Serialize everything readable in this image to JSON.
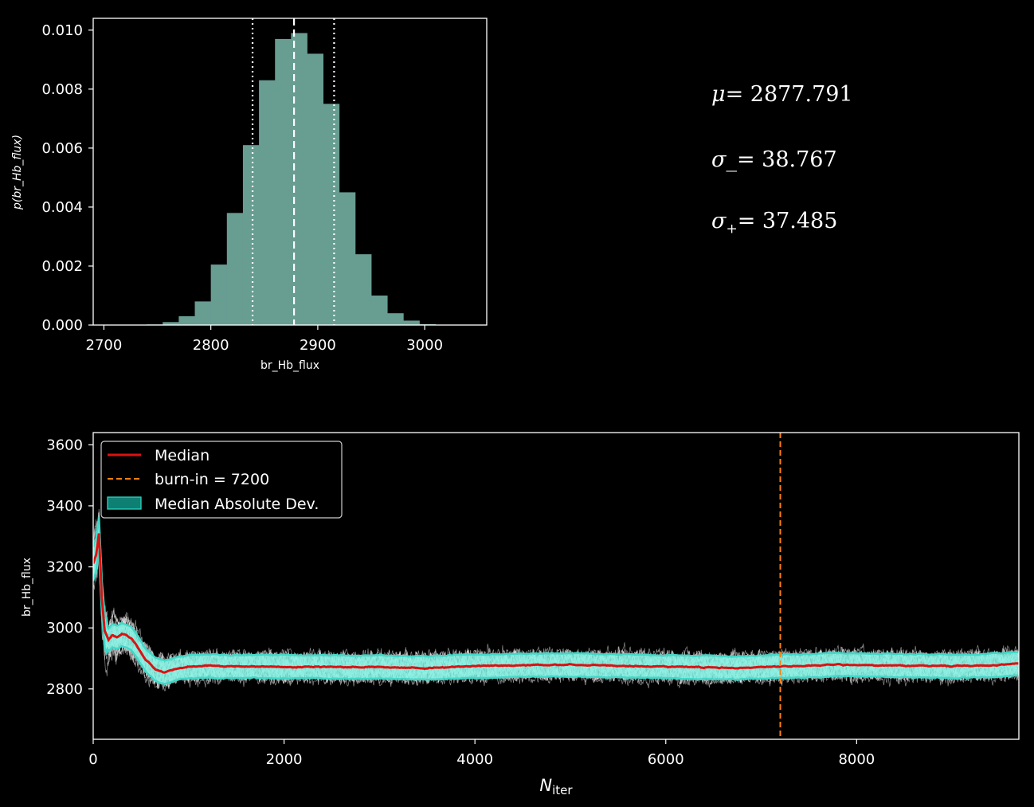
{
  "chart_data": [
    {
      "type": "histogram",
      "xlabel": "br_Hb_flux",
      "ylabel": "p(br_Hb_flux)",
      "xlim": [
        2690,
        3058
      ],
      "ylim": [
        0,
        0.0104
      ],
      "xticks": [
        2700,
        2800,
        2900,
        3000
      ],
      "yticks": [
        0.0,
        0.002,
        0.004,
        0.006,
        0.008,
        0.01
      ],
      "ytick_labels": [
        "0.000",
        "0.002",
        "0.004",
        "0.006",
        "0.008",
        "0.010"
      ],
      "bin_width": 15,
      "bin_starts": [
        2740,
        2755,
        2770,
        2785,
        2800,
        2815,
        2830,
        2845,
        2860,
        2875,
        2890,
        2905,
        2920,
        2935,
        2950,
        2965,
        2980,
        2995,
        3010,
        3025
      ],
      "values": [
        2e-05,
        0.0001,
        0.0003,
        0.0008,
        0.00205,
        0.0038,
        0.0061,
        0.0083,
        0.0097,
        0.0099,
        0.0092,
        0.0075,
        0.0045,
        0.0024,
        0.001,
        0.0004,
        0.00015,
        3e-05,
        1e-05,
        1e-05
      ],
      "bar_color": "#689D92",
      "median": 2877.791,
      "lower": 2839.024,
      "upper": 2915.276,
      "grid": false
    },
    {
      "type": "line",
      "xlabel": "N_iter",
      "ylabel": "br_Hb_flux",
      "xlim": [
        0,
        9700
      ],
      "ylim": [
        2635,
        3640
      ],
      "xticks": [
        0,
        2000,
        4000,
        6000,
        8000
      ],
      "yticks": [
        2800,
        3000,
        3200,
        3400,
        3600
      ],
      "burn_in": 7200,
      "legend_position": "upper-left",
      "legend": [
        {
          "label": "Median",
          "style": "line",
          "color": "#DD1111"
        },
        {
          "label": "burn-in = 7200",
          "style": "dashed",
          "color": "#FF7F0E"
        },
        {
          "label": "Median Absolute Dev.",
          "style": "patch",
          "color": "#0E8073"
        }
      ],
      "median_trace": {
        "x": [
          0,
          30,
          60,
          90,
          120,
          160,
          200,
          250,
          300,
          350,
          400,
          450,
          500,
          550,
          600,
          650,
          700,
          750,
          800,
          900,
          1000,
          1200,
          1500,
          1800,
          2100,
          2400,
          2700,
          3000,
          3300,
          3500,
          3800,
          4200,
          4600,
          5000,
          5400,
          5800,
          6200,
          6500,
          6800,
          7000,
          7200,
          7500,
          7800,
          8200,
          8600,
          9000,
          9400,
          9700
        ],
        "y": [
          3210,
          3240,
          3310,
          3100,
          2990,
          2960,
          2975,
          2970,
          2980,
          2975,
          2965,
          2945,
          2920,
          2895,
          2880,
          2865,
          2858,
          2855,
          2860,
          2868,
          2872,
          2875,
          2873,
          2874,
          2872,
          2873,
          2871,
          2872,
          2870,
          2868,
          2873,
          2876,
          2878,
          2879,
          2876,
          2874,
          2872,
          2870,
          2869,
          2872,
          2874,
          2876,
          2880,
          2878,
          2876,
          2875,
          2877,
          2883
        ]
      },
      "mad_halfwidth": 38,
      "colors": {
        "median": "#DD1111",
        "mad_fill": "#7FF0E0",
        "mad_edge": "#40D8C8",
        "walkers": "#FFFFFF",
        "burn_in": "#FF7F0E"
      }
    }
  ],
  "stats": {
    "mu": {
      "symbol": "μ",
      "sub": "",
      "value": "= 2877.791"
    },
    "sigma_minus": {
      "symbol": "σ",
      "sub": "_",
      "value": "= 38.767"
    },
    "sigma_plus": {
      "symbol": "σ",
      "sub": "+",
      "value": "= 37.485"
    }
  }
}
